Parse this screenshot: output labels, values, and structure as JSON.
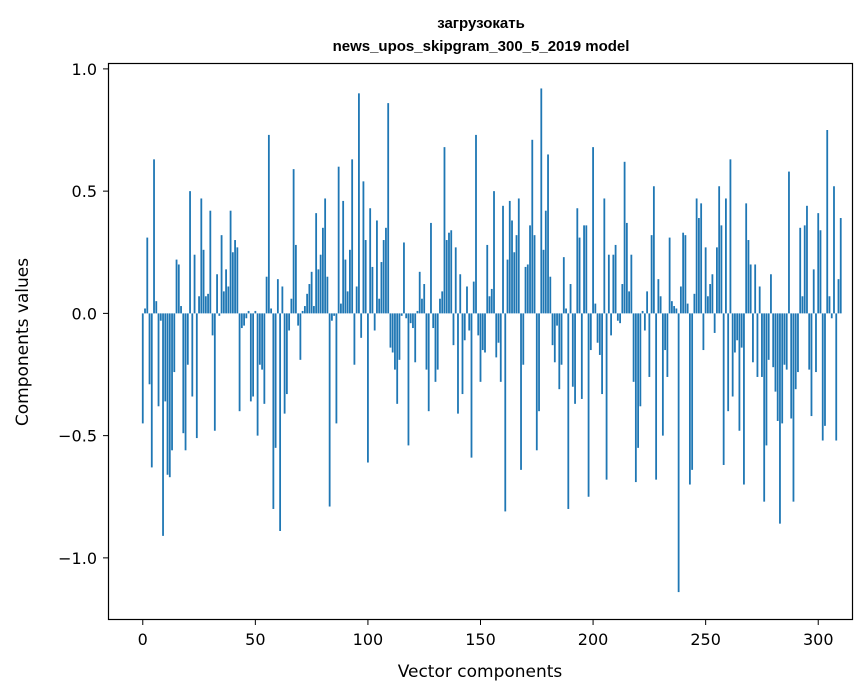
{
  "chart_data": {
    "type": "bar",
    "title_line1": "загрузокать",
    "title_line2": "news_upos_skipgram_300_5_2019 model",
    "xlabel": "Vector components",
    "ylabel": "Components values",
    "xlim": [
      -15,
      315
    ],
    "ylim": [
      -1.25,
      1.02
    ],
    "x_ticks": [
      0,
      50,
      100,
      150,
      200,
      250,
      300
    ],
    "x_tick_labels": [
      "0",
      "50",
      "100",
      "150",
      "200",
      "250",
      "300"
    ],
    "y_ticks": [
      1.0,
      0.5,
      0.0,
      -0.5,
      -1.0
    ],
    "y_tick_labels": [
      "1.0",
      "0.5",
      "0.0",
      "−0.5",
      "−1.0"
    ],
    "bar_color": "#1f77b4",
    "values": [
      -0.45,
      0.02,
      0.31,
      -0.29,
      -0.63,
      0.63,
      0.05,
      -0.38,
      -0.03,
      -0.91,
      -0.36,
      -0.66,
      -0.67,
      -0.56,
      -0.24,
      0.22,
      0.2,
      0.03,
      -0.49,
      -0.56,
      -0.21,
      0.5,
      -0.34,
      0.24,
      -0.51,
      0.07,
      0.47,
      0.26,
      0.07,
      0.08,
      0.42,
      -0.09,
      -0.48,
      0.16,
      -0.01,
      0.32,
      0.09,
      0.18,
      0.11,
      0.42,
      0.25,
      0.3,
      0.27,
      -0.4,
      -0.06,
      -0.05,
      -0.02,
      0.01,
      -0.36,
      -0.34,
      0.01,
      -0.5,
      -0.21,
      -0.23,
      -0.37,
      0.15,
      0.73,
      0.02,
      -0.8,
      -0.55,
      0.14,
      -0.89,
      0.11,
      -0.41,
      -0.33,
      -0.07,
      0.06,
      0.59,
      0.28,
      -0.05,
      -0.19,
      0.01,
      0.03,
      0.08,
      0.12,
      0.17,
      0.03,
      0.41,
      0.18,
      0.24,
      0.35,
      0.47,
      0.15,
      -0.79,
      -0.03,
      -0.01,
      -0.45,
      0.6,
      0.04,
      0.46,
      0.22,
      0.09,
      0.26,
      0.63,
      -0.21,
      0.11,
      0.9,
      -0.1,
      0.54,
      0.3,
      -0.61,
      0.43,
      0.19,
      -0.07,
      0.38,
      0.06,
      0.21,
      0.3,
      0.35,
      0.86,
      -0.14,
      -0.16,
      -0.23,
      -0.37,
      -0.19,
      -0.01,
      0.29,
      -0.02,
      -0.54,
      -0.04,
      -0.06,
      -0.2,
      0.01,
      0.17,
      0.06,
      0.12,
      -0.23,
      -0.4,
      0.37,
      -0.06,
      -0.28,
      -0.23,
      0.06,
      0.09,
      0.68,
      0.3,
      0.33,
      0.34,
      -0.13,
      0.27,
      -0.41,
      0.16,
      -0.33,
      -0.11,
      0.11,
      -0.07,
      -0.59,
      0.13,
      0.73,
      -0.09,
      -0.28,
      -0.15,
      -0.16,
      0.28,
      0.07,
      0.1,
      0.5,
      -0.18,
      -0.12,
      -0.28,
      0.44,
      -0.81,
      0.22,
      0.46,
      0.38,
      0.25,
      0.32,
      0.47,
      -0.64,
      -0.21,
      0.19,
      0.2,
      0.36,
      0.71,
      0.32,
      -0.56,
      -0.4,
      0.92,
      0.26,
      0.42,
      0.65,
      0.15,
      -0.13,
      -0.2,
      -0.05,
      -0.31,
      -0.21,
      0.23,
      0.02,
      -0.8,
      0.12,
      -0.3,
      -0.37,
      0.43,
      0.31,
      -0.35,
      0.36,
      0.36,
      -0.75,
      -0.15,
      0.68,
      0.04,
      -0.12,
      -0.17,
      -0.33,
      0.47,
      -0.68,
      0.24,
      -0.09,
      0.24,
      0.28,
      -0.03,
      -0.04,
      0.12,
      0.62,
      0.37,
      0.09,
      0.24,
      -0.28,
      -0.69,
      -0.55,
      -0.38,
      0.01,
      -0.07,
      0.09,
      -0.26,
      0.32,
      0.52,
      -0.68,
      0.14,
      0.07,
      -0.5,
      -0.15,
      -0.26,
      0.31,
      0.05,
      0.03,
      0.02,
      -1.14,
      0.11,
      0.33,
      0.32,
      0.04,
      -0.7,
      -0.64,
      0.08,
      0.47,
      0.39,
      0.45,
      -0.15,
      0.27,
      0.07,
      0.12,
      0.16,
      -0.08,
      0.27,
      0.52,
      0.36,
      -0.62,
      0.47,
      -0.4,
      0.63,
      -0.34,
      -0.16,
      -0.11,
      -0.48,
      -0.14,
      -0.7,
      0.45,
      0.3,
      0.2,
      -0.2,
      0.2,
      -0.26,
      0.11,
      -0.26,
      -0.77,
      -0.54,
      -0.19,
      0.16,
      -0.22,
      -0.32,
      -0.44,
      -0.86,
      -0.45,
      -0.21,
      -0.23,
      0.58,
      -0.43,
      -0.77,
      -0.31,
      -0.24,
      0.35,
      0.07,
      0.36,
      0.44,
      -0.23,
      -0.42,
      0.18,
      -0.24,
      0.41,
      0.34,
      -0.52,
      -0.46,
      0.75,
      0.07,
      -0.02,
      0.52,
      -0.52,
      0.14,
      0.39
    ]
  }
}
